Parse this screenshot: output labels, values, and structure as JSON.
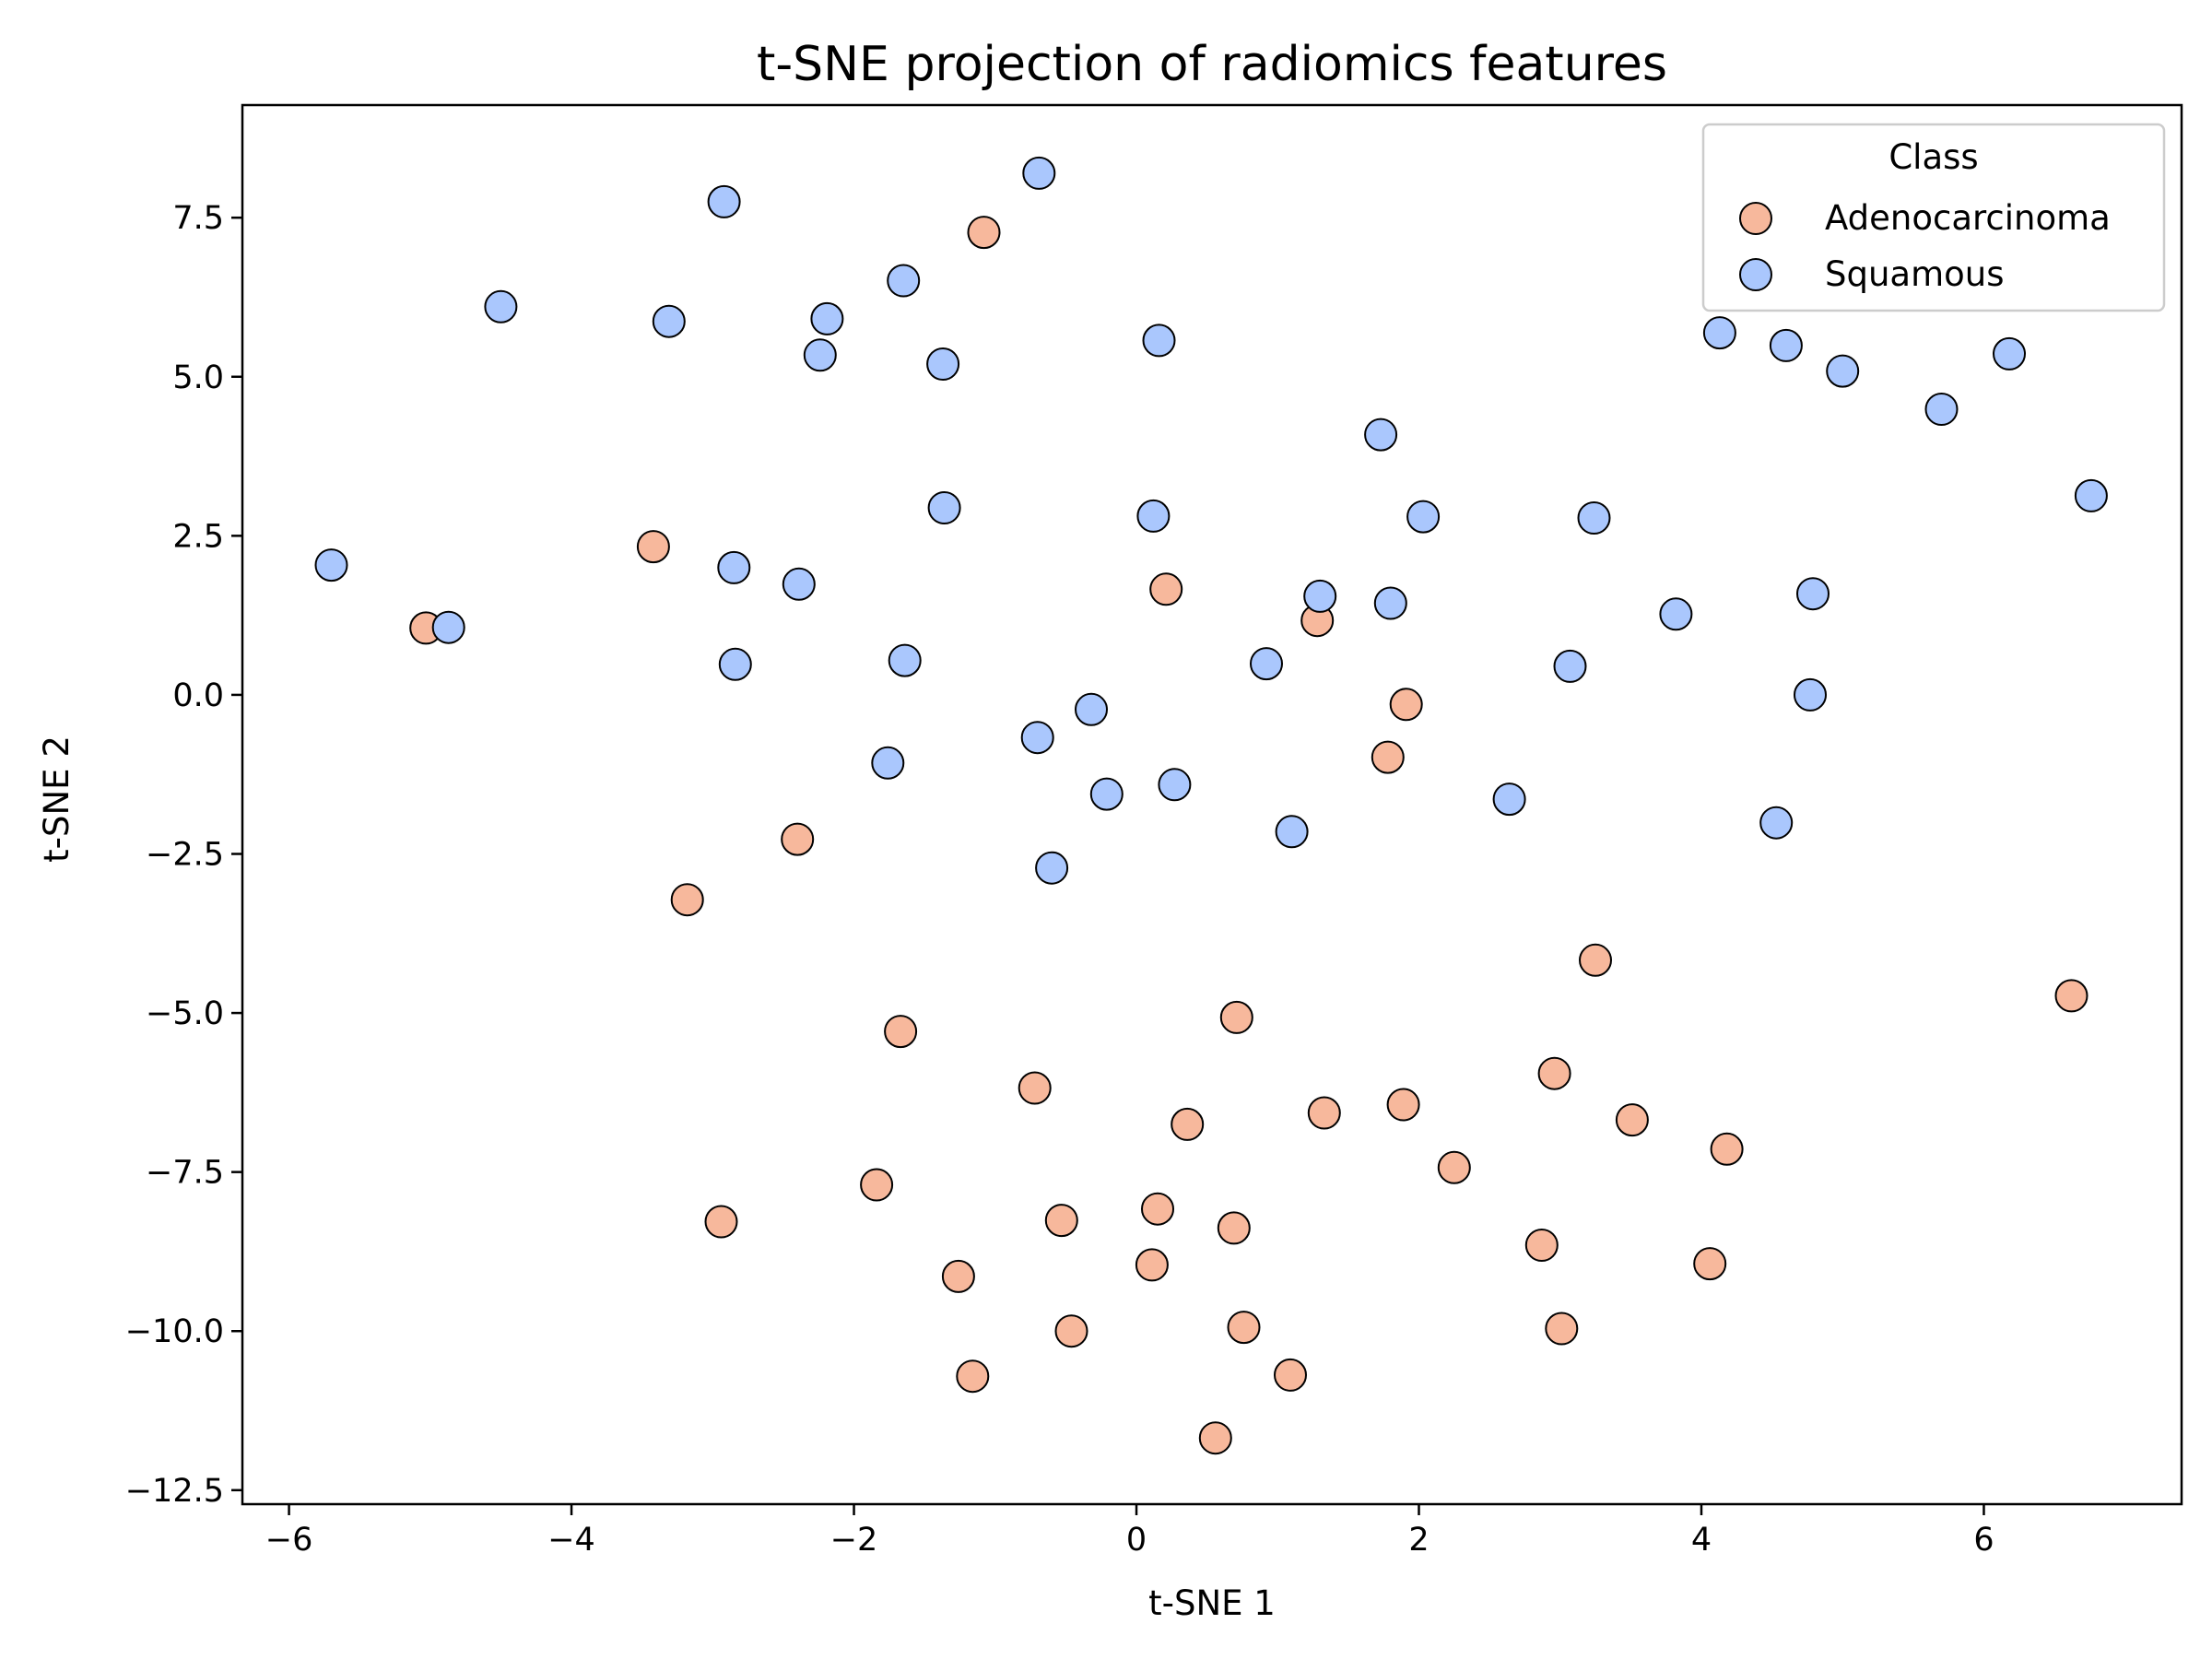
{
  "chart_data": {
    "type": "scatter",
    "title": "t-SNE projection of radiomics features",
    "xlabel": "t-SNE 1",
    "ylabel": "t-SNE 2",
    "xlim": [
      -6.33,
      7.4
    ],
    "ylim": [
      -12.72,
      9.27
    ],
    "xticks": [
      -6,
      -4,
      -2,
      0,
      2,
      4,
      6
    ],
    "xtick_labels": [
      "−6",
      "−4",
      "−2",
      "0",
      "2",
      "4",
      "6"
    ],
    "yticks": [
      -12.5,
      -10.0,
      -7.5,
      -5.0,
      -2.5,
      0.0,
      2.5,
      5.0,
      7.5
    ],
    "ytick_labels": [
      "−12.5",
      "−10.0",
      "−7.5",
      "−5.0",
      "−2.5",
      "0.0",
      "2.5",
      "5.0",
      "7.5"
    ],
    "grid": false,
    "legend": {
      "title": "Class",
      "position": "top-right"
    },
    "series": [
      {
        "name": "Adenocarcinoma",
        "color": "#f7b89c",
        "points": [
          [
            -1.08,
            7.27
          ],
          [
            -3.42,
            2.33
          ],
          [
            -5.03,
            1.05
          ],
          [
            0.21,
            1.66
          ],
          [
            1.28,
            1.17
          ],
          [
            1.91,
            -0.15
          ],
          [
            1.78,
            -0.98
          ],
          [
            -2.4,
            -2.27
          ],
          [
            -3.18,
            -3.22
          ],
          [
            3.25,
            -4.17
          ],
          [
            6.62,
            -4.73
          ],
          [
            -1.67,
            -5.29
          ],
          [
            0.71,
            -5.07
          ],
          [
            -0.72,
            -6.18
          ],
          [
            2.96,
            -5.95
          ],
          [
            1.89,
            -6.44
          ],
          [
            1.33,
            -6.57
          ],
          [
            0.36,
            -6.75
          ],
          [
            3.51,
            -6.68
          ],
          [
            4.18,
            -7.14
          ],
          [
            2.25,
            -7.43
          ],
          [
            -1.84,
            -7.7
          ],
          [
            -2.94,
            -8.28
          ],
          [
            -0.53,
            -8.26
          ],
          [
            0.15,
            -8.08
          ],
          [
            0.69,
            -8.38
          ],
          [
            2.87,
            -8.65
          ],
          [
            4.06,
            -8.94
          ],
          [
            -1.26,
            -9.14
          ],
          [
            0.11,
            -8.96
          ],
          [
            -0.46,
            -10.0
          ],
          [
            0.76,
            -9.94
          ],
          [
            3.01,
            -9.96
          ],
          [
            -1.16,
            -10.71
          ],
          [
            1.09,
            -10.69
          ],
          [
            0.56,
            -11.68
          ]
        ]
      },
      {
        "name": "Squamous",
        "color": "#aac7fd",
        "points": [
          [
            -0.69,
            8.2
          ],
          [
            -2.92,
            7.75
          ],
          [
            -4.5,
            6.1
          ],
          [
            -3.31,
            5.87
          ],
          [
            -1.65,
            6.51
          ],
          [
            -2.19,
            5.91
          ],
          [
            -2.24,
            5.34
          ],
          [
            -1.37,
            5.2
          ],
          [
            0.16,
            5.57
          ],
          [
            4.13,
            5.69
          ],
          [
            4.6,
            5.49
          ],
          [
            5.0,
            5.09
          ],
          [
            6.18,
            5.36
          ],
          [
            5.7,
            4.49
          ],
          [
            1.73,
            4.09
          ],
          [
            6.76,
            3.13
          ],
          [
            -1.36,
            2.94
          ],
          [
            0.12,
            2.81
          ],
          [
            2.03,
            2.8
          ],
          [
            3.24,
            2.78
          ],
          [
            -5.7,
            2.04
          ],
          [
            -2.85,
            2.0
          ],
          [
            -2.39,
            1.74
          ],
          [
            1.3,
            1.55
          ],
          [
            1.8,
            1.44
          ],
          [
            3.82,
            1.27
          ],
          [
            4.79,
            1.59
          ],
          [
            -4.87,
            1.06
          ],
          [
            -2.84,
            0.48
          ],
          [
            -1.64,
            0.54
          ],
          [
            0.92,
            0.49
          ],
          [
            3.07,
            0.45
          ],
          [
            4.77,
            0.0
          ],
          [
            -0.32,
            -0.23
          ],
          [
            -0.7,
            -0.67
          ],
          [
            -1.76,
            -1.07
          ],
          [
            0.27,
            -1.41
          ],
          [
            -0.21,
            -1.56
          ],
          [
            1.1,
            -2.15
          ],
          [
            2.64,
            -1.64
          ],
          [
            4.53,
            -2.01
          ],
          [
            -0.6,
            -2.72
          ]
        ]
      }
    ]
  }
}
